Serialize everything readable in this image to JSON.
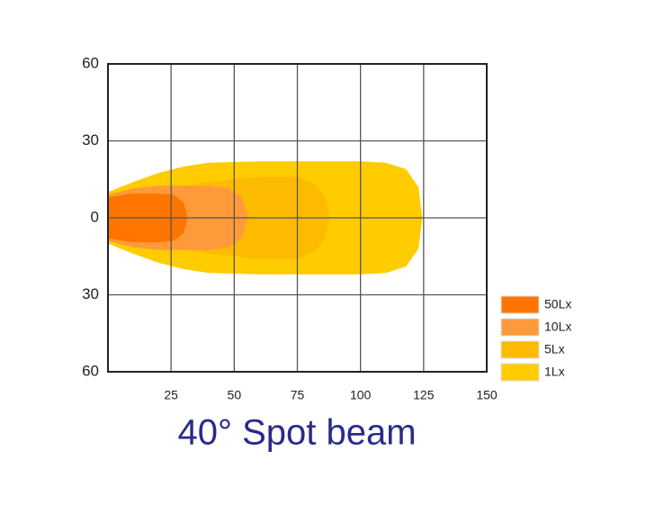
{
  "chart_data": {
    "type": "beam",
    "title": "40° Spot beam",
    "xlim": [
      0,
      150
    ],
    "xticks": [
      25,
      50,
      75,
      100,
      125,
      150
    ],
    "ylim": [
      -60,
      60
    ],
    "yticks": [
      {
        "value": 60,
        "label": "60"
      },
      {
        "value": 30,
        "label": "30"
      },
      0,
      {
        "value": -30,
        "label": "30"
      },
      {
        "value": -60,
        "label": "60"
      }
    ],
    "grid": true,
    "legend": "bottom-right",
    "series": [
      {
        "name": "1Lx",
        "color": "#ffcc00",
        "x": [
          0,
          10,
          20,
          30,
          40,
          60,
          80,
          100,
          110,
          118,
          123,
          124.5
        ],
        "values": [
          10,
          14,
          17.5,
          20,
          21.5,
          22,
          22,
          22,
          21.5,
          19,
          12,
          0
        ]
      },
      {
        "name": "5Lx",
        "color": "#fdbb00",
        "x": [
          0,
          20,
          40,
          60,
          75,
          82,
          86,
          88
        ],
        "values": [
          8,
          11,
          14,
          16,
          16,
          13,
          8,
          0
        ]
      },
      {
        "name": "10Lx",
        "color": "#ff9a3a",
        "x": [
          0,
          10,
          20,
          30,
          40,
          48,
          53,
          55.5
        ],
        "values": [
          9,
          11.5,
          12.5,
          12.5,
          12.5,
          11.5,
          8,
          0
        ]
      },
      {
        "name": "50Lx",
        "color": "#ff7500",
        "x": [
          0,
          10,
          20,
          26,
          30,
          31.5
        ],
        "values": [
          8,
          9.5,
          9.5,
          9,
          6,
          0
        ]
      }
    ]
  }
}
